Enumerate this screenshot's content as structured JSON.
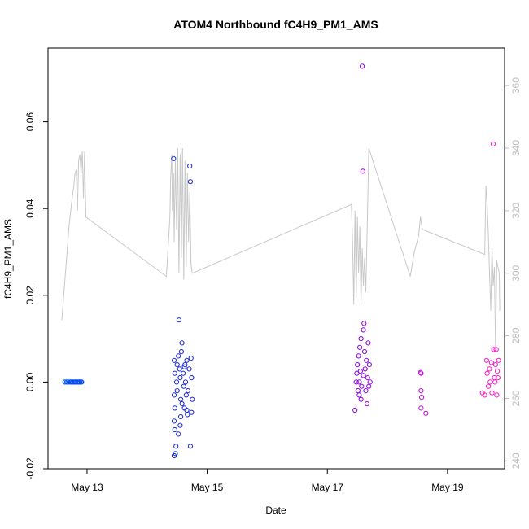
{
  "chart_data": {
    "type": "scatter",
    "title": "ATOM4 Northbound fC4H9_PM1_AMS",
    "xlabel": "Date",
    "ylabel": "fC4H9_PM1_AMS",
    "y2label": "",
    "x_ticks": [
      "May 13",
      "May 15",
      "May 17",
      "May 19"
    ],
    "x_tick_days": [
      13,
      15,
      17,
      19
    ],
    "xlim": [
      12.35,
      19.95
    ],
    "ylim": [
      -0.02,
      0.077
    ],
    "y_ticks": [
      -0.02,
      0.0,
      0.02,
      0.04,
      0.06
    ],
    "y_tick_labels": [
      "-0.02",
      "0.00",
      "0.02",
      "0.04",
      "0.06"
    ],
    "y2lim": [
      237.5,
      372
    ],
    "y2_ticks": [
      240,
      260,
      280,
      300,
      320,
      340,
      360
    ],
    "grid": false,
    "legend": "none",
    "secondary_line_color": "#c8c8c8",
    "point_gradient": [
      "#0050ff",
      "#2020d0",
      "#8a00e6",
      "#ff18c8"
    ],
    "series": [
      {
        "name": "",
        "points": [
          [
            12.63,
            0.0
          ],
          [
            12.66,
            0.0
          ],
          [
            12.68,
            0.0
          ],
          [
            12.71,
            0.0
          ],
          [
            12.73,
            0.0
          ],
          [
            12.74,
            0.0
          ],
          [
            12.76,
            0.0
          ],
          [
            12.78,
            0.0
          ],
          [
            12.8,
            0.0
          ],
          [
            12.81,
            0.0
          ],
          [
            12.83,
            0.0
          ],
          [
            12.85,
            0.0
          ],
          [
            12.87,
            0.0
          ],
          [
            12.88,
            0.0
          ],
          [
            12.9,
            0.0
          ],
          [
            12.91,
            0.0
          ],
          [
            14.44,
            0.0515
          ],
          [
            14.45,
            0.005
          ],
          [
            14.46,
            0.002
          ],
          [
            14.45,
            -0.003
          ],
          [
            14.46,
            -0.006
          ],
          [
            14.45,
            -0.009
          ],
          [
            14.46,
            -0.011
          ],
          [
            14.45,
            -0.017
          ],
          [
            14.47,
            -0.0165
          ],
          [
            14.48,
            -0.0148
          ],
          [
            14.49,
            0.0
          ],
          [
            14.5,
            0.004
          ],
          [
            14.5,
            -0.002
          ],
          [
            14.52,
            0.006
          ],
          [
            14.53,
            0.0143
          ],
          [
            14.54,
            0.003
          ],
          [
            14.55,
            0.001
          ],
          [
            14.56,
            -0.004
          ],
          [
            14.56,
            -0.008
          ],
          [
            14.57,
            0.007
          ],
          [
            14.58,
            0.009
          ],
          [
            14.58,
            -0.005
          ],
          [
            14.6,
            0.002
          ],
          [
            14.61,
            -0.001
          ],
          [
            14.62,
            -0.006
          ],
          [
            14.63,
            0.004
          ],
          [
            14.64,
            0.0
          ],
          [
            14.65,
            -0.003
          ],
          [
            14.66,
            0.005
          ],
          [
            14.67,
            -0.0075
          ],
          [
            14.68,
            -0.002
          ],
          [
            14.7,
            0.003
          ],
          [
            14.71,
            0.0498
          ],
          [
            14.72,
            0.0462
          ],
          [
            14.72,
            -0.0148
          ],
          [
            14.73,
            0.0055
          ],
          [
            14.74,
            0.001
          ],
          [
            14.75,
            -0.004
          ],
          [
            14.74,
            -0.007
          ],
          [
            14.52,
            -0.012
          ],
          [
            14.55,
            -0.01
          ],
          [
            14.62,
            0.0035
          ],
          [
            14.66,
            -0.0065
          ],
          [
            17.46,
            -0.0065
          ],
          [
            17.48,
            0.0
          ],
          [
            17.49,
            0.002
          ],
          [
            17.5,
            0.004
          ],
          [
            17.51,
            -0.002
          ],
          [
            17.52,
            0.006
          ],
          [
            17.53,
            0.0
          ],
          [
            17.54,
            0.008
          ],
          [
            17.55,
            0.0025
          ],
          [
            17.56,
            0.01
          ],
          [
            17.57,
            -0.001
          ],
          [
            17.58,
            0.0728
          ],
          [
            17.59,
            0.0486
          ],
          [
            17.6,
            0.012
          ],
          [
            17.61,
            0.0135
          ],
          [
            17.62,
            0.007
          ],
          [
            17.63,
            0.003
          ],
          [
            17.64,
            -0.002
          ],
          [
            17.65,
            0.005
          ],
          [
            17.66,
            -0.005
          ],
          [
            17.67,
            0.001
          ],
          [
            17.68,
            0.009
          ],
          [
            17.69,
            -0.001
          ],
          [
            17.7,
            0.004
          ],
          [
            17.71,
            0.0
          ],
          [
            17.53,
            -0.003
          ],
          [
            17.56,
            -0.004
          ],
          [
            17.6,
            0.0015
          ],
          [
            18.55,
            0.0022
          ],
          [
            18.56,
            0.002
          ],
          [
            18.56,
            -0.002
          ],
          [
            18.57,
            -0.0035
          ],
          [
            18.56,
            -0.006
          ],
          [
            18.64,
            -0.0072
          ],
          [
            19.58,
            -0.0025
          ],
          [
            19.62,
            -0.003
          ],
          [
            19.65,
            0.005
          ],
          [
            19.66,
            0.002
          ],
          [
            19.68,
            -0.001
          ],
          [
            19.7,
            0.003
          ],
          [
            19.71,
            0.0
          ],
          [
            19.73,
            0.0045
          ],
          [
            19.74,
            -0.0025
          ],
          [
            19.76,
            0.0549
          ],
          [
            19.77,
            0.0075
          ],
          [
            19.78,
            0.001
          ],
          [
            19.79,
            0.0
          ],
          [
            19.8,
            0.004
          ],
          [
            19.81,
            0.0075
          ],
          [
            19.82,
            -0.003
          ],
          [
            19.83,
            0.0025
          ],
          [
            19.84,
            0.001
          ],
          [
            19.85,
            0.005
          ]
        ]
      },
      {
        "name": "",
        "axis": "right",
        "style": "line",
        "points": [
          [
            12.58,
            285
          ],
          [
            12.62,
            295
          ],
          [
            12.66,
            305
          ],
          [
            12.7,
            315
          ],
          [
            12.74,
            322
          ],
          [
            12.78,
            328
          ],
          [
            12.8,
            332
          ],
          [
            12.82,
            333
          ],
          [
            12.84,
            320
          ],
          [
            12.86,
            336
          ],
          [
            12.88,
            338
          ],
          [
            12.9,
            332
          ],
          [
            12.92,
            339
          ],
          [
            12.94,
            324
          ],
          [
            12.96,
            339
          ],
          [
            12.98,
            318
          ],
          [
            14.32,
            299
          ],
          [
            14.38,
            318
          ],
          [
            14.39,
            330
          ],
          [
            14.41,
            338
          ],
          [
            14.42,
            320
          ],
          [
            14.44,
            332
          ],
          [
            14.45,
            310
          ],
          [
            14.47,
            336
          ],
          [
            14.49,
            314
          ],
          [
            14.51,
            340
          ],
          [
            14.53,
            300
          ],
          [
            14.55,
            338
          ],
          [
            14.57,
            305
          ],
          [
            14.59,
            340
          ],
          [
            14.61,
            298
          ],
          [
            14.63,
            336
          ],
          [
            14.65,
            302
          ],
          [
            14.67,
            332
          ],
          [
            14.69,
            310
          ],
          [
            14.71,
            326
          ],
          [
            14.73,
            303
          ],
          [
            14.75,
            300
          ],
          [
            17.4,
            322
          ],
          [
            17.42,
            310
          ],
          [
            17.44,
            290
          ],
          [
            17.46,
            320
          ],
          [
            17.48,
            292
          ],
          [
            17.5,
            318
          ],
          [
            17.52,
            300
          ],
          [
            17.54,
            315
          ],
          [
            17.56,
            290
          ],
          [
            17.58,
            308
          ],
          [
            17.6,
            296
          ],
          [
            17.62,
            305
          ],
          [
            17.64,
            294
          ],
          [
            17.66,
            312
          ],
          [
            17.69,
            340
          ],
          [
            18.38,
            299
          ],
          [
            18.45,
            307
          ],
          [
            18.52,
            312
          ],
          [
            18.55,
            318
          ],
          [
            18.58,
            314
          ],
          [
            19.62,
            306
          ],
          [
            19.64,
            328
          ],
          [
            19.66,
            322
          ],
          [
            19.68,
            312
          ],
          [
            19.7,
            300
          ],
          [
            19.72,
            288
          ],
          [
            19.74,
            308
          ],
          [
            19.76,
            296
          ],
          [
            19.78,
            302
          ],
          [
            19.8,
            275
          ],
          [
            19.82,
            304
          ],
          [
            19.84,
            302
          ],
          [
            19.86,
            300
          ],
          [
            19.87,
            288
          ]
        ]
      }
    ]
  }
}
